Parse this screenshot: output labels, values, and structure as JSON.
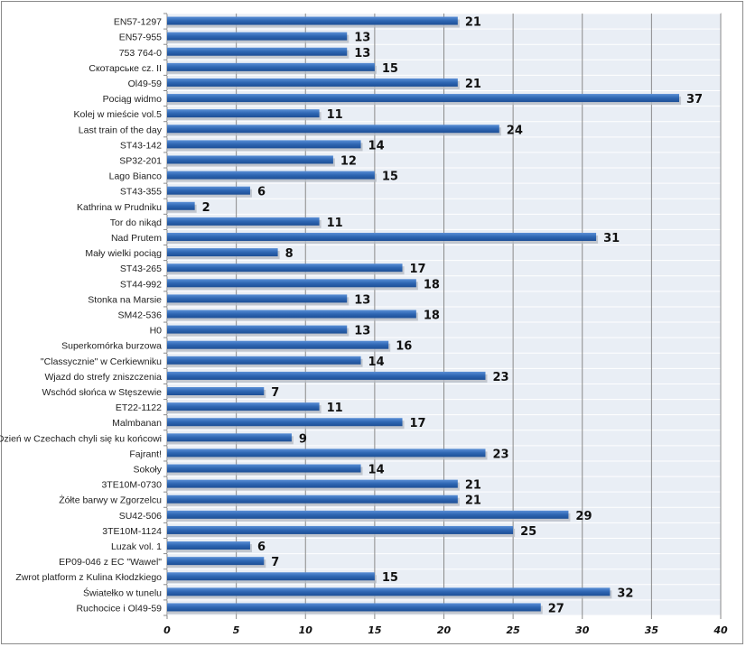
{
  "chart_data": {
    "type": "bar",
    "orientation": "horizontal",
    "title": "",
    "xlabel": "",
    "ylabel": "",
    "xlim": [
      0,
      40
    ],
    "xticks": [
      0,
      5,
      10,
      15,
      20,
      25,
      30,
      35,
      40
    ],
    "grid": true,
    "bar_color": "#2e66b2",
    "categories": [
      "EN57-1297",
      "EN57-955",
      "753 764-0",
      "Скотарське cz. II",
      "Ol49-59",
      "Pociąg widmo",
      "Kolej w mieście vol.5",
      "Last train of the day",
      "ST43-142",
      "SP32-201",
      "Lago Bianco",
      "ST43-355",
      "Kathrina w Prudniku",
      "Tor do nikąd",
      "Nad Prutem",
      "Mały wielki pociąg",
      "ST43-265",
      "ST44-992",
      "Stonka na Marsie",
      "SM42-536",
      "H0",
      "Superkomórka burzowa",
      "\"Classycznie\" w Cerkiewniku",
      "Wjazd do strefy zniszczenia",
      "Wschód słońca w Stęszewie",
      "ET22-1122",
      "Malmbanan",
      "Dzień w Czechach chyli się ku końcowi",
      "Fajrant!",
      "Sokoły",
      "3TE10M-0730",
      "Żółte barwy w Zgorzelcu",
      "SU42-506",
      "3TE10M-1124",
      "Luzak vol. 1",
      "EP09-046 z EC \"Wawel\"",
      "Zwrot platform z Kulina Kłodzkiego",
      "Światełko w tunelu",
      "Ruchocice i Ol49-59"
    ],
    "values": [
      21,
      13,
      13,
      15,
      21,
      37,
      11,
      24,
      14,
      12,
      15,
      6,
      2,
      11,
      31,
      8,
      17,
      18,
      13,
      18,
      13,
      16,
      14,
      23,
      7,
      11,
      17,
      9,
      23,
      14,
      21,
      21,
      29,
      25,
      6,
      7,
      15,
      32,
      27
    ]
  }
}
